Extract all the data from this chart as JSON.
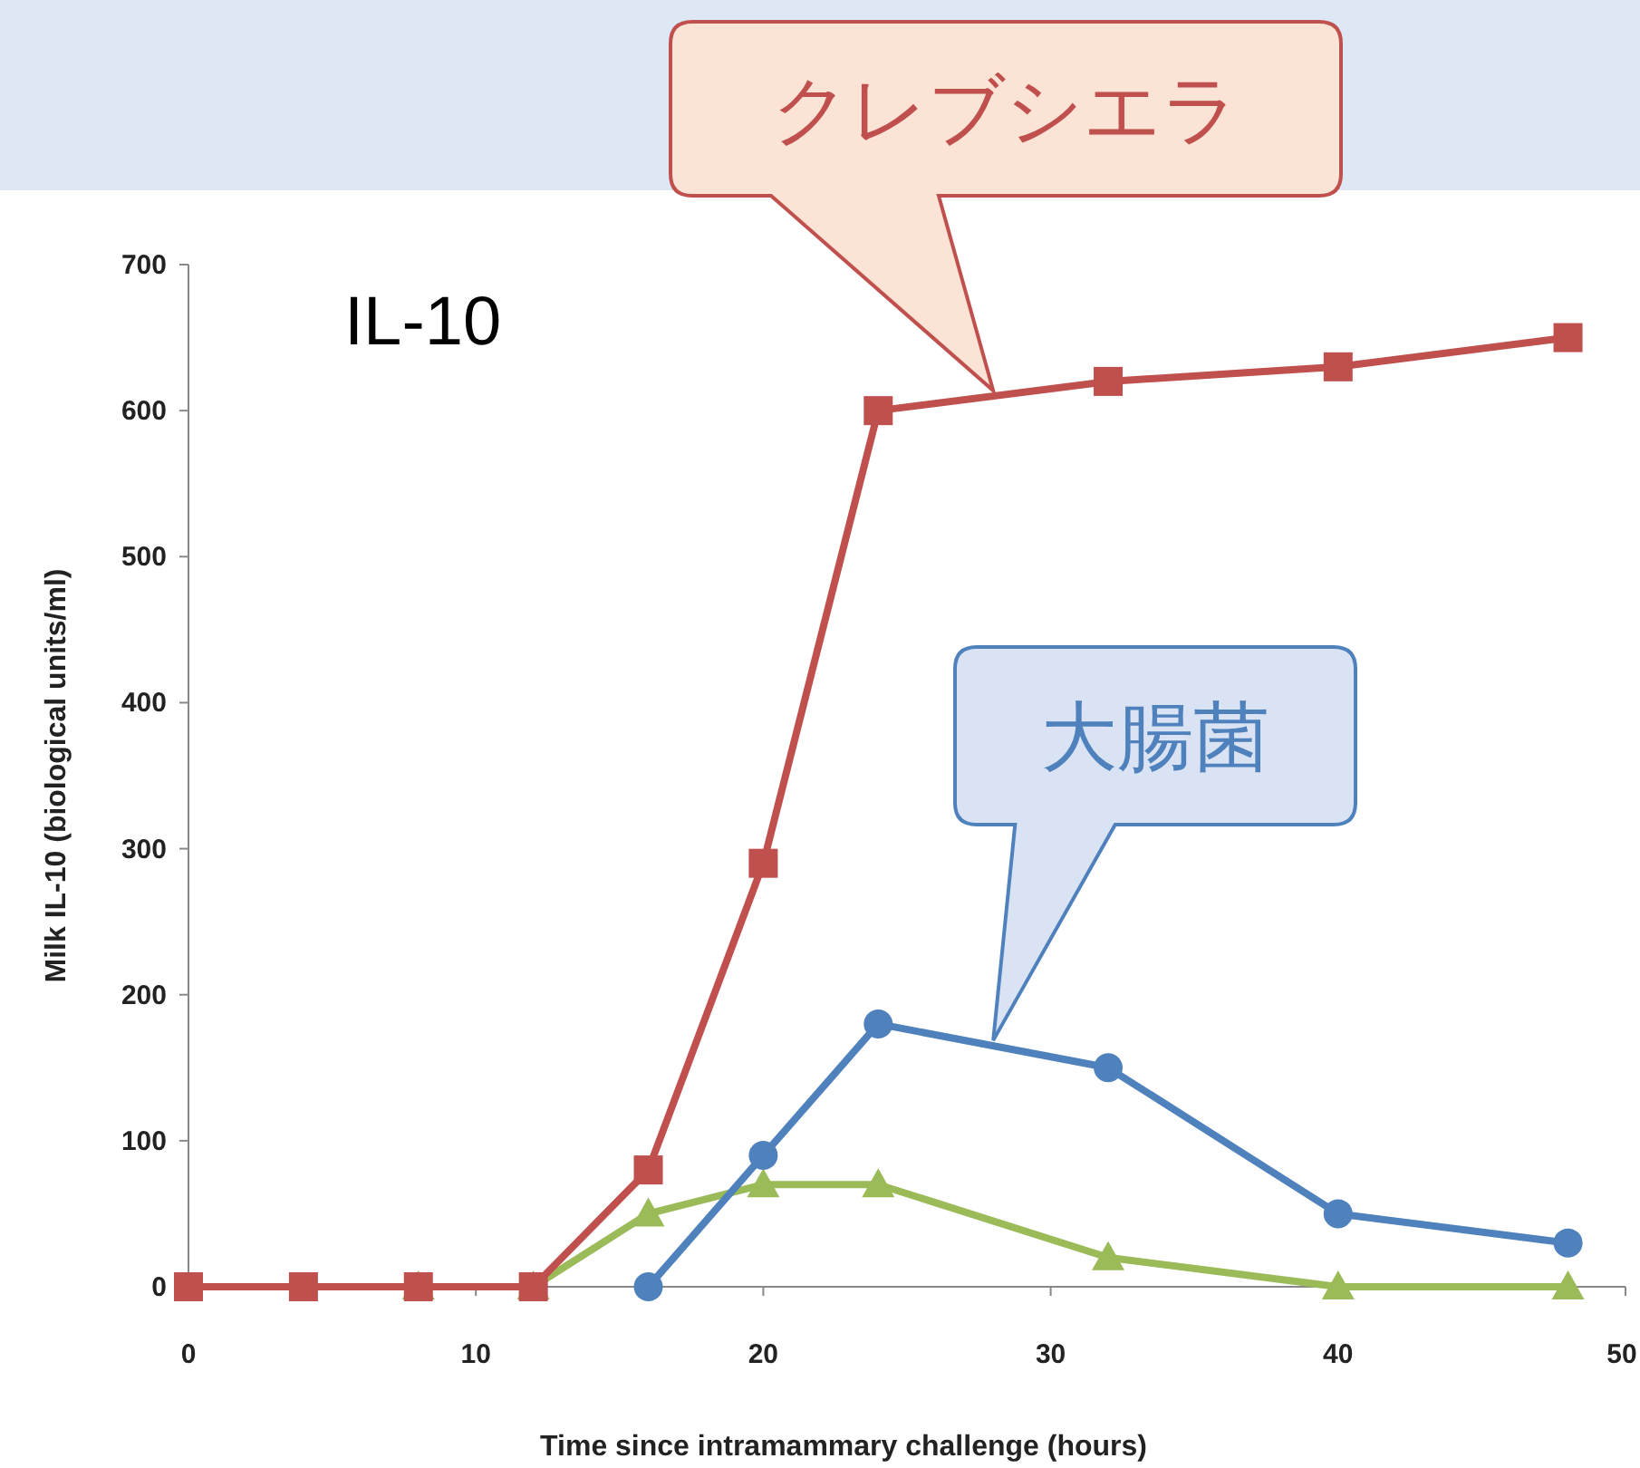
{
  "chart_data": {
    "type": "line",
    "xlabel": "Time since intramammary challenge (hours)",
    "ylabel": "Milk IL-10 (biological units/ml)",
    "annotations": [
      "IL-10"
    ],
    "xlim": [
      0,
      50
    ],
    "xticks": [
      0,
      10,
      20,
      30,
      40,
      50
    ],
    "ylim": [
      0,
      700
    ],
    "yticks": [
      0,
      100,
      200,
      300,
      400,
      500,
      600,
      700
    ],
    "grid": false,
    "series": [
      {
        "name": "クレブシエラ",
        "color": "#c0504d",
        "marker": "square",
        "x": [
          0,
          4,
          8,
          12,
          16,
          20,
          24,
          32,
          40,
          48
        ],
        "values": [
          0,
          0,
          0,
          0,
          80,
          290,
          600,
          620,
          630,
          650
        ]
      },
      {
        "name": "大腸菌",
        "color": "#4f81bd",
        "marker": "circle",
        "x": [
          16,
          20,
          24,
          32,
          40,
          48
        ],
        "values": [
          0,
          90,
          180,
          150,
          50,
          30
        ]
      },
      {
        "color": "#9bbb59",
        "marker": "triangle",
        "x": [
          8,
          12,
          16,
          20,
          24,
          32,
          40,
          48
        ],
        "values": [
          0,
          0,
          50,
          70,
          70,
          20,
          0,
          0
        ]
      }
    ]
  }
}
